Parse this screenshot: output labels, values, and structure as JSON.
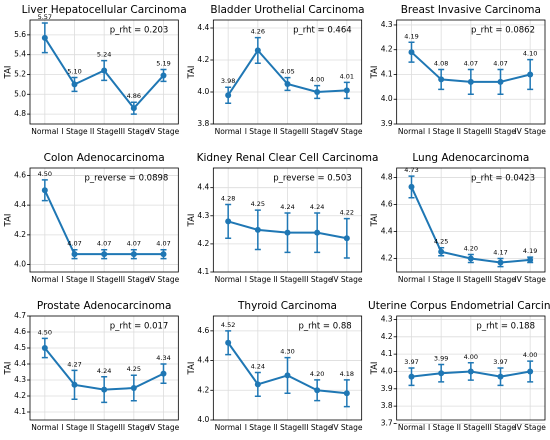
{
  "chart_data": [
    {
      "type": "line",
      "title": "Liver Hepatocellular Carcinoma",
      "annotation": "p_rht = 0.203",
      "ylabel": "TAI",
      "categories": [
        "Normal",
        "I Stage",
        "II Stage",
        "III Stage",
        "IV Stage"
      ],
      "values": [
        5.57,
        5.1,
        5.24,
        4.86,
        5.19
      ],
      "value_labels": [
        "5.57",
        "5.10",
        "5.24",
        "4.86",
        "5.19"
      ],
      "errors": [
        0.15,
        0.07,
        0.1,
        0.06,
        0.06
      ],
      "color": "#1f77b4",
      "ylim": [
        4.7,
        5.75
      ],
      "yticks": [
        4.8,
        {
          "value": 5,
          "label": "5.0"
        },
        5.2,
        5.4,
        5.6
      ],
      "grid": true
    },
    {
      "type": "line",
      "title": "Bladder Urothelial Carcinoma",
      "annotation": "p_rht = 0.464",
      "ylabel": "TAI",
      "categories": [
        "Normal",
        "I Stage",
        "II Stage",
        "III Stage",
        "IV Stage"
      ],
      "values": [
        3.98,
        4.26,
        4.05,
        4,
        4.01
      ],
      "value_labels": [
        "3.98",
        "4.26",
        "4.05",
        "4.00",
        "4.01"
      ],
      "errors": [
        0.05,
        0.08,
        0.04,
        0.04,
        0.05
      ],
      "color": "#1f77b4",
      "ylim": [
        3.8,
        4.45
      ],
      "yticks": [
        3.8,
        {
          "value": 4,
          "label": "4.0"
        },
        4.2,
        4.4
      ],
      "grid": true
    },
    {
      "type": "line",
      "title": "Breast Invasive Carcinoma",
      "annotation": "p_rht = 0.0862",
      "ylabel": "TAI",
      "categories": [
        "Normal",
        "I Stage",
        "II Stage",
        "III Stage",
        "IV Stage"
      ],
      "values": [
        4.19,
        4.08,
        4.07,
        4.07,
        4.1
      ],
      "value_labels": [
        "4.19",
        "4.08",
        "4.07",
        "4.07",
        "4.10"
      ],
      "errors": [
        0.04,
        0.04,
        0.05,
        0.05,
        0.06
      ],
      "color": "#1f77b4",
      "ylim": [
        3.9,
        4.32
      ],
      "yticks": [
        3.9,
        {
          "value": 4,
          "label": "4.0"
        },
        4.1,
        4.2,
        4.3
      ],
      "grid": true
    },
    {
      "type": "line",
      "title": "Colon Adenocarcinoma",
      "annotation": "p_reverse = 0.0898",
      "ylabel": "TAI",
      "categories": [
        "Normal",
        "I Stage",
        "II Stage",
        "III Stage",
        "IV Stage"
      ],
      "values": [
        4.5,
        4.07,
        4.07,
        4.07,
        4.07
      ],
      "value_labels": [
        "4.50",
        "4.07",
        "4.07",
        "4.07",
        "4.07"
      ],
      "errors": [
        0.07,
        0.03,
        0.03,
        0.03,
        0.03
      ],
      "color": "#1f77b4",
      "ylim": [
        3.95,
        4.65
      ],
      "yticks": [
        {
          "value": 4,
          "label": "4.0"
        },
        4.2,
        4.4,
        4.6
      ],
      "grid": true
    },
    {
      "type": "line",
      "title": "Kidney Renal Clear Cell Carcinoma",
      "annotation": "p_reverse = 0.503",
      "ylabel": "TAI",
      "categories": [
        "Normal",
        "I Stage",
        "II Stage",
        "III Stage",
        "IV Stage"
      ],
      "values": [
        4.28,
        4.25,
        4.24,
        4.24,
        4.22
      ],
      "value_labels": [
        "4.28",
        "4.25",
        "4.24",
        "4.24",
        "4.22"
      ],
      "errors": [
        0.06,
        0.07,
        0.07,
        0.07,
        0.07
      ],
      "color": "#1f77b4",
      "ylim": [
        4.1,
        4.47
      ],
      "yticks": [
        4.1,
        4.2,
        4.3,
        4.4
      ],
      "grid": true
    },
    {
      "type": "line",
      "title": "Lung Adenocarcinoma",
      "annotation": "p_rht = 0.0423",
      "ylabel": "TAI",
      "categories": [
        "Normal",
        "I Stage",
        "II Stage",
        "III Stage",
        "IV Stage"
      ],
      "values": [
        4.73,
        4.25,
        4.2,
        4.17,
        4.19
      ],
      "value_labels": [
        "4.73",
        "4.25",
        "4.20",
        "4.17",
        "4.19"
      ],
      "errors": [
        0.08,
        0.03,
        0.03,
        0.03,
        0.02
      ],
      "color": "#1f77b4",
      "ylim": [
        4.1,
        4.87
      ],
      "yticks": [
        4.2,
        4.4,
        4.6,
        4.8
      ],
      "grid": true
    },
    {
      "type": "line",
      "title": "Prostate Adenocarcinoma",
      "annotation": "p_rht = 0.017",
      "ylabel": "TAI",
      "categories": [
        "Normal",
        "I Stage",
        "II Stage",
        "III Stage",
        "IV Stage"
      ],
      "values": [
        4.5,
        4.27,
        4.24,
        4.25,
        4.34
      ],
      "value_labels": [
        "4.50",
        "4.27",
        "4.24",
        "4.25",
        "4.34"
      ],
      "errors": [
        0.06,
        0.09,
        0.08,
        0.08,
        0.06
      ],
      "color": "#1f77b4",
      "ylim": [
        4.05,
        4.7
      ],
      "yticks": [
        4.1,
        4.2,
        4.3,
        4.4,
        4.5,
        4.6,
        4.7
      ],
      "grid": true
    },
    {
      "type": "line",
      "title": "Thyroid Carcinoma",
      "annotation": "p_rht = 0.88",
      "ylabel": "TAI",
      "categories": [
        "Normal",
        "I Stage",
        "II Stage",
        "III Stage",
        "IV Stage"
      ],
      "values": [
        4.52,
        4.24,
        4.3,
        4.2,
        4.18
      ],
      "value_labels": [
        "4.52",
        "4.24",
        "4.30",
        "4.20",
        "4.18"
      ],
      "errors": [
        0.08,
        0.08,
        0.12,
        0.07,
        0.09
      ],
      "color": "#1f77b4",
      "ylim": [
        4.0,
        4.7
      ],
      "yticks": [
        {
          "value": 4,
          "label": "4.0"
        },
        4.2,
        4.4,
        4.6
      ],
      "grid": true
    },
    {
      "type": "line",
      "title": "Uterine Corpus Endometrial Carcinoma",
      "annotation": "p_rht = 0.188",
      "ylabel": "TAI",
      "categories": [
        "Normal",
        "I Stage",
        "II Stage",
        "III Stage",
        "IV Stage"
      ],
      "values": [
        3.97,
        3.99,
        4,
        3.97,
        4
      ],
      "value_labels": [
        "3.97",
        "3.99",
        "4.00",
        "3.97",
        "4.00"
      ],
      "errors": [
        0.05,
        0.05,
        0.05,
        0.05,
        0.06
      ],
      "color": "#1f77b4",
      "ylim": [
        3.72,
        4.32
      ],
      "yticks": [
        3.7,
        3.8,
        3.9,
        {
          "value": 4,
          "label": "4.0"
        },
        4.1,
        4.2,
        4.3
      ],
      "grid": true
    }
  ]
}
